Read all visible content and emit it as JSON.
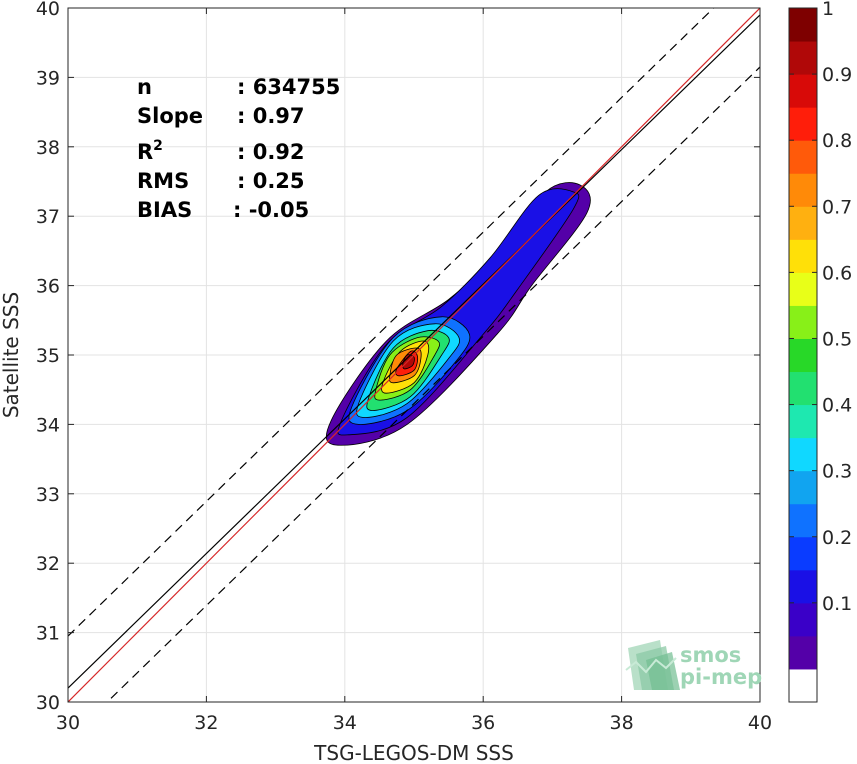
{
  "chart_data": {
    "type": "heatmap",
    "title": "",
    "xlabel": "TSG-LEGOS-DM SSS",
    "ylabel": "Satellite SSS",
    "xlim": [
      30,
      40
    ],
    "ylim": [
      30,
      40
    ],
    "xticks": [
      "30",
      "32",
      "34",
      "36",
      "38",
      "40"
    ],
    "yticks": [
      "30",
      "31",
      "32",
      "33",
      "34",
      "35",
      "36",
      "37",
      "38",
      "39",
      "40"
    ],
    "grid": true,
    "stats": {
      "n_label": "n",
      "n_value": ": 634755",
      "slope_label": "Slope",
      "slope_value": ": 0.97",
      "r2_label": "R",
      "r2_sup": "2",
      "r2_value": ": 0.92",
      "rms_label": "RMS",
      "rms_value": ": 0.25",
      "bias_label": "BIAS",
      "bias_value": ": -0.05"
    },
    "lines": {
      "identity": {
        "slope": 1.0,
        "intercept": 0.0,
        "color": "#d62728"
      },
      "regression": {
        "slope": 0.97,
        "intercept": 1.1,
        "color": "#000000"
      },
      "upper_bound": {
        "slope": 0.97,
        "intercept": 1.85,
        "style": "dashed"
      },
      "lower_bound": {
        "slope": 0.97,
        "intercept": 0.35,
        "style": "dashed"
      }
    },
    "density_levels": [
      {
        "level": 0.05,
        "xs": [
          33.9,
          34.9,
          36.2,
          36.7,
          37.5,
          37.4,
          36.9,
          36.2,
          35.5,
          34.6,
          33.8
        ],
        "ys": [
          33.7,
          34.0,
          35.3,
          36.0,
          37.05,
          37.45,
          37.35,
          36.45,
          35.8,
          35.2,
          34.05
        ]
      },
      {
        "level": 0.15,
        "xs": [
          34.05,
          34.9,
          36.0,
          36.5,
          37.3,
          37.3,
          36.8,
          36.1,
          35.4,
          34.6,
          33.95
        ],
        "ys": [
          33.85,
          34.1,
          35.3,
          35.95,
          37.1,
          37.35,
          37.3,
          36.4,
          35.7,
          35.15,
          34.05
        ]
      },
      {
        "level": 0.25,
        "xs": [
          34.2,
          34.9,
          35.6,
          35.8,
          35.4,
          34.7,
          34.1
        ],
        "ys": [
          34.0,
          34.2,
          34.9,
          35.3,
          35.55,
          35.25,
          34.25
        ]
      },
      {
        "level": 0.35,
        "xs": [
          34.3,
          34.9,
          35.5,
          35.65,
          35.3,
          34.7,
          34.2
        ],
        "ys": [
          34.1,
          34.3,
          34.95,
          35.25,
          35.45,
          35.2,
          34.3
        ]
      },
      {
        "level": 0.45,
        "xs": [
          34.4,
          34.95,
          35.4,
          35.5,
          35.2,
          34.7,
          34.35
        ],
        "ys": [
          34.2,
          34.4,
          35.0,
          35.25,
          35.35,
          35.1,
          34.4
        ]
      },
      {
        "level": 0.55,
        "xs": [
          34.5,
          34.95,
          35.3,
          35.35,
          35.05,
          34.65,
          34.45
        ],
        "ys": [
          34.35,
          34.5,
          35.0,
          35.2,
          35.25,
          35.0,
          34.5
        ]
      },
      {
        "level": 0.65,
        "xs": [
          34.6,
          35.0,
          35.2,
          35.15,
          34.8,
          34.55
        ],
        "ys": [
          34.45,
          34.6,
          35.0,
          35.2,
          35.05,
          34.6
        ]
      },
      {
        "level": 0.75,
        "xs": [
          34.7,
          35.0,
          35.1,
          35.05,
          34.75,
          34.65
        ],
        "ys": [
          34.6,
          34.7,
          34.95,
          35.1,
          35.0,
          34.7
        ]
      },
      {
        "level": 0.85,
        "xs": [
          34.78,
          35.0,
          35.05,
          34.95,
          34.75
        ],
        "ys": [
          34.7,
          34.78,
          34.98,
          35.05,
          34.8
        ]
      },
      {
        "level": 0.95,
        "xs": [
          34.86,
          34.98,
          35.0,
          34.9,
          34.84
        ],
        "ys": [
          34.8,
          34.85,
          34.97,
          35.0,
          34.88
        ]
      }
    ],
    "colorbar": {
      "min": 0.05,
      "max": 1.0,
      "step": 0.05,
      "tick_labels": [
        "0.1",
        "0.2",
        "0.3",
        "0.4",
        "0.5",
        "0.6",
        "0.7",
        "0.8",
        "0.9",
        "1"
      ],
      "tick_values": [
        0.1,
        0.2,
        0.3,
        0.4,
        0.5,
        0.6,
        0.7,
        0.8,
        0.9,
        1.0
      ],
      "colors": [
        "#ffffff",
        "#5400a8",
        "#3a00c8",
        "#1a10e6",
        "#0a3cff",
        "#0f72ff",
        "#11a4f0",
        "#10d8ff",
        "#1ee8b0",
        "#22e070",
        "#28d828",
        "#88f018",
        "#e8ff18",
        "#ffe008",
        "#ffb010",
        "#ff8a08",
        "#ff5a0a",
        "#ff1e0a",
        "#d80a08",
        "#b00808",
        "#7e0000"
      ]
    }
  },
  "logo": {
    "line1": "smos",
    "line2": "pi-mep"
  }
}
